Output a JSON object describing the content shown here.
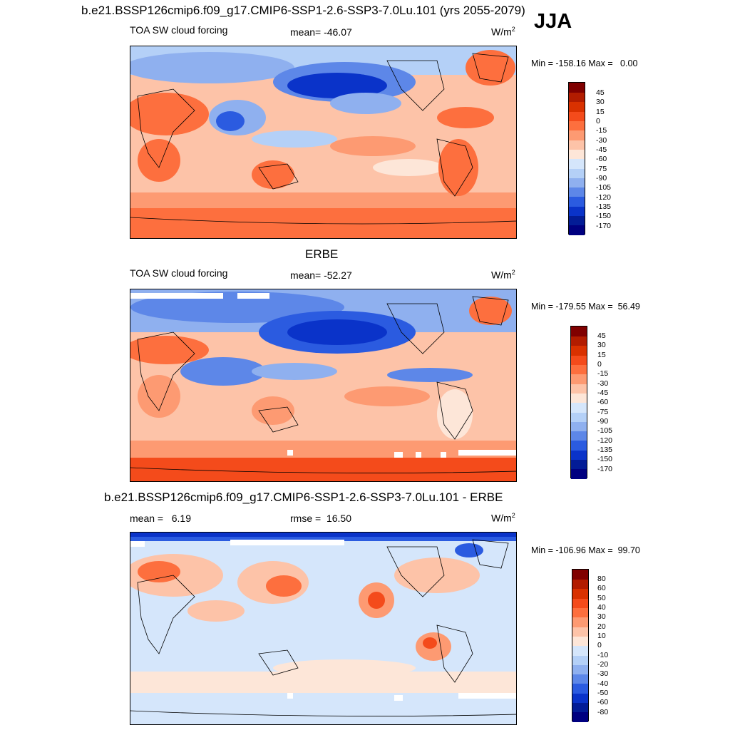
{
  "figure": {
    "season": "JJA",
    "units": "W/m",
    "units_sup": "2"
  },
  "colors": {
    "forcing_scale": [
      "#800000",
      "#b21c00",
      "#d93100",
      "#f44b1b",
      "#fd6f3e",
      "#fd9a72",
      "#fdc3a8",
      "#fde6d8",
      "#d5e6fb",
      "#b4d0f7",
      "#8fb0ef",
      "#5d87e8",
      "#2b5be0",
      "#0a33c9",
      "#031c96",
      "#000080"
    ],
    "diff_scale": [
      "#800000",
      "#b21c00",
      "#d93100",
      "#f44b1b",
      "#fd6f3e",
      "#fd9a72",
      "#fdc3a8",
      "#fde6d8",
      "#d5e6fb",
      "#b4d0f7",
      "#8fb0ef",
      "#5d87e8",
      "#2b5be0",
      "#0a33c9",
      "#031c96",
      "#000080"
    ]
  },
  "chart_data": [
    {
      "type": "heatmap",
      "title": "b.e21.BSSP126cmip6.f09_g17.CMIP6-SSP1-2.6-SSP3-7.0Lu.101 (yrs 2055-2079)",
      "variable": "TOA SW cloud forcing",
      "mean_label": "mean= -46.07",
      "minmax_label": "Min = -158.16 Max =   0.00",
      "colorbar_levels": [
        "45",
        "30",
        "15",
        "0",
        "-15",
        "-30",
        "-45",
        "-60",
        "-75",
        "-90",
        "-105",
        "-120",
        "-135",
        "-150",
        "-170"
      ]
    },
    {
      "type": "heatmap",
      "title": "ERBE",
      "variable": "TOA SW cloud forcing",
      "mean_label": "mean= -52.27",
      "minmax_label": "Min = -179.55 Max =  56.49",
      "colorbar_levels": [
        "45",
        "30",
        "15",
        "0",
        "-15",
        "-30",
        "-45",
        "-60",
        "-75",
        "-90",
        "-105",
        "-120",
        "-135",
        "-150",
        "-170"
      ]
    },
    {
      "type": "heatmap",
      "title": "b.e21.BSSP126cmip6.f09_g17.CMIP6-SSP1-2.6-SSP3-7.0Lu.101 - ERBE",
      "mean_label": "mean =   6.19",
      "rmse_label": "rmse =  16.50",
      "minmax_label": "Min = -106.96 Max =  99.70",
      "colorbar_levels": [
        "80",
        "60",
        "50",
        "40",
        "30",
        "20",
        "10",
        "0",
        "-10",
        "-20",
        "-30",
        "-40",
        "-50",
        "-60",
        "-80"
      ]
    }
  ]
}
